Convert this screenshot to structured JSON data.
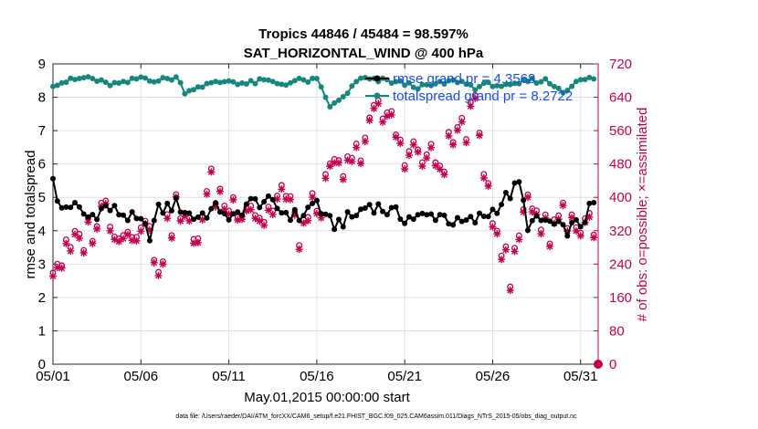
{
  "chart_data": {
    "type": "line",
    "title_line1": "Tropics 44846 / 45484 = 98.597%",
    "title_line2": "SAT_HORIZONTAL_WIND @ 400 hPa",
    "xlabel": "May.01,2015 00:00:00 start",
    "ylabel_left": "rmse and totalspread",
    "ylabel_right": "# of obs: o=possible; ×=assimilated",
    "footnote": "data file: /Users/raeder/DAI/ATM_forcXX/CAM6_setup/f.e21.FHIST_BGC.f09_025.CAM6assim.011/Diags_NTrS_2015-05/obs_diag_output.nc",
    "xlim": [
      0,
      31
    ],
    "ylim_left": [
      0,
      9
    ],
    "ylim_right": [
      0,
      720
    ],
    "x_ticks": [
      0,
      5,
      10,
      15,
      20,
      25,
      30
    ],
    "x_tick_labels": [
      "05/01",
      "05/06",
      "05/11",
      "05/16",
      "05/21",
      "05/26",
      "05/31"
    ],
    "y_ticks_left": [
      0,
      1,
      2,
      3,
      4,
      5,
      6,
      7,
      8,
      9
    ],
    "y_tick_labels_left": [
      "0",
      "1",
      "2",
      "3",
      "4",
      "5",
      "6",
      "7",
      "8",
      "9"
    ],
    "y_ticks_right": [
      0,
      80,
      160,
      240,
      320,
      400,
      480,
      560,
      640,
      720
    ],
    "y_tick_labels_right": [
      "0",
      "80",
      "160",
      "240",
      "320",
      "400",
      "480",
      "560",
      "640",
      "720"
    ],
    "legend": [
      {
        "label": "rmse grand pr = 4.3568",
        "color": "#000000"
      },
      {
        "label": "totalspread grand pr = 8.2722",
        "color": "#16877e"
      }
    ],
    "colors": {
      "rmse": "#000000",
      "spread": "#16877e",
      "obs": "#c5004f",
      "legend_text": "#1a4fe6",
      "grid": "#e0e0e0"
    },
    "rmse_knots": [
      [
        0,
        5.7
      ],
      [
        0.3,
        4.6
      ],
      [
        1,
        4.8
      ],
      [
        2,
        4.4
      ],
      [
        3,
        4.7
      ],
      [
        4,
        4.5
      ],
      [
        5,
        4.2
      ],
      [
        5.5,
        3.9
      ],
      [
        6,
        4.6
      ],
      [
        7,
        4.8
      ],
      [
        8,
        4.4
      ],
      [
        9,
        4.6
      ],
      [
        9.7,
        4.7
      ],
      [
        10,
        4.2
      ],
      [
        11,
        4.8
      ],
      [
        12,
        4.9
      ],
      [
        13,
        4.6
      ],
      [
        14,
        4.4
      ],
      [
        15,
        4.9
      ],
      [
        15.5,
        4.3
      ],
      [
        16,
        4.2
      ],
      [
        17,
        4.4
      ],
      [
        18,
        4.8
      ],
      [
        19,
        4.6
      ],
      [
        20,
        4.4
      ],
      [
        21,
        4.4
      ],
      [
        22,
        4.5
      ],
      [
        23,
        4.2
      ],
      [
        24,
        4.3
      ],
      [
        25,
        4.6
      ],
      [
        26,
        5.1
      ],
      [
        26.5,
        5.4
      ],
      [
        27,
        4.2
      ],
      [
        28,
        4.3
      ],
      [
        29,
        4.0
      ],
      [
        30,
        4.2
      ],
      [
        31,
        5.0
      ]
    ],
    "spread_knots": [
      [
        0,
        8.4
      ],
      [
        1,
        8.5
      ],
      [
        2,
        8.6
      ],
      [
        3,
        8.4
      ],
      [
        4,
        8.4
      ],
      [
        5,
        8.6
      ],
      [
        6,
        8.5
      ],
      [
        7,
        8.6
      ],
      [
        7.6,
        8.1
      ],
      [
        8,
        8.3
      ],
      [
        9,
        8.4
      ],
      [
        10,
        8.5
      ],
      [
        11,
        8.4
      ],
      [
        12,
        8.5
      ],
      [
        13,
        8.4
      ],
      [
        14,
        8.5
      ],
      [
        15,
        8.5
      ],
      [
        15.8,
        7.7
      ],
      [
        16.3,
        7.9
      ],
      [
        17,
        8.3
      ],
      [
        17.6,
        8.6
      ],
      [
        18,
        8.5
      ],
      [
        19,
        8.5
      ],
      [
        20,
        8.4
      ],
      [
        21,
        8.3
      ],
      [
        22,
        8.4
      ],
      [
        23,
        8.5
      ],
      [
        24,
        8.3
      ],
      [
        25,
        8.4
      ],
      [
        26,
        8.3
      ],
      [
        27,
        8.5
      ],
      [
        28,
        8.5
      ],
      [
        29,
        8.2
      ],
      [
        30,
        8.5
      ],
      [
        31,
        8.6
      ]
    ],
    "obs_knots": [
      [
        0,
        240
      ],
      [
        1,
        270
      ],
      [
        2,
        320
      ],
      [
        3,
        380
      ],
      [
        4,
        310
      ],
      [
        5,
        360
      ],
      [
        6,
        250
      ],
      [
        7,
        380
      ],
      [
        8,
        300
      ],
      [
        9,
        430
      ],
      [
        10,
        380
      ],
      [
        11,
        400
      ],
      [
        12,
        350
      ],
      [
        13,
        420
      ],
      [
        14,
        320
      ],
      [
        15,
        380
      ],
      [
        16,
        460
      ],
      [
        17,
        470
      ],
      [
        18,
        590
      ],
      [
        19,
        600
      ],
      [
        20,
        520
      ],
      [
        21,
        500
      ],
      [
        22,
        480
      ],
      [
        23,
        560
      ],
      [
        24,
        600
      ],
      [
        25,
        380
      ],
      [
        26,
        200
      ],
      [
        27,
        420
      ],
      [
        28,
        320
      ],
      [
        29,
        370
      ],
      [
        30,
        330
      ],
      [
        31,
        360
      ]
    ]
  }
}
